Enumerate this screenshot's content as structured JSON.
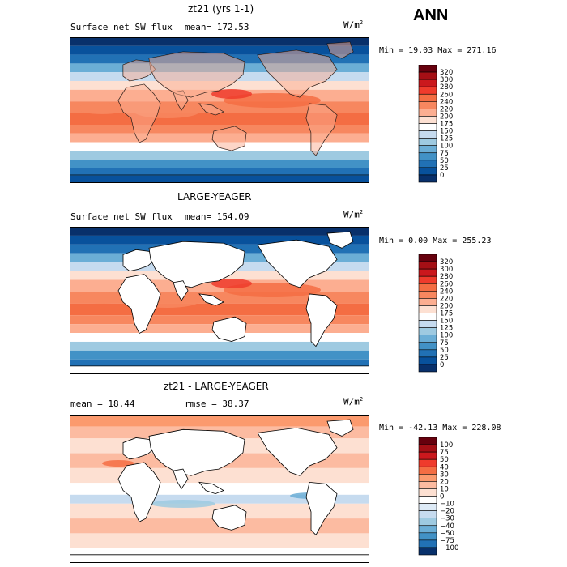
{
  "season": "ANN",
  "panels": [
    {
      "title": "zt21 (yrs 1-1)",
      "field_label": "Surface net SW flux",
      "stat_text": "mean= 172.53",
      "stat2_text": "",
      "units": "W/m",
      "units_exp": "2",
      "minmax": "Min =  19.03 Max = 271.16",
      "mask_land": false,
      "colorbar": {
        "levels": [
          "320",
          "300",
          "280",
          "260",
          "240",
          "220",
          "200",
          "175",
          "150",
          "125",
          "100",
          "75",
          "50",
          "25",
          "0"
        ],
        "colors": [
          "#67000d",
          "#a50f15",
          "#cb181d",
          "#ef3b2c",
          "#f46d43",
          "#f7875f",
          "#fcae91",
          "#fde0d2",
          "#ffffff",
          "#c6dbef",
          "#9ecae1",
          "#6baed6",
          "#4292c6",
          "#2171b5",
          "#08519c",
          "#08306b"
        ]
      }
    },
    {
      "title": "LARGE-YEAGER",
      "field_label": "Surface net SW flux",
      "stat_text": "mean= 154.09",
      "stat2_text": "",
      "units": "W/m",
      "units_exp": "2",
      "minmax": "Min =   0.00 Max = 255.23",
      "mask_land": true,
      "colorbar": {
        "levels": [
          "320",
          "300",
          "280",
          "260",
          "240",
          "220",
          "200",
          "175",
          "150",
          "125",
          "100",
          "75",
          "50",
          "25",
          "0"
        ],
        "colors": [
          "#67000d",
          "#a50f15",
          "#cb181d",
          "#ef3b2c",
          "#f46d43",
          "#f7875f",
          "#fcae91",
          "#fde0d2",
          "#ffffff",
          "#c6dbef",
          "#9ecae1",
          "#6baed6",
          "#4292c6",
          "#2171b5",
          "#08519c",
          "#08306b"
        ]
      }
    },
    {
      "title": "zt21 - LARGE-YEAGER",
      "field_label": "mean =  18.44",
      "stat_text": "rmse =  38.37",
      "stat2_text": "",
      "units": "W/m",
      "units_exp": "2",
      "minmax": "Min = -42.13 Max = 228.08",
      "mask_land": true,
      "colorbar": {
        "levels": [
          "100",
          "75",
          "50",
          "40",
          "30",
          "20",
          "10",
          "0",
          "−10",
          "−20",
          "−30",
          "−40",
          "−50",
          "−75",
          "−100"
        ],
        "colors": [
          "#67000d",
          "#a50f15",
          "#cb181d",
          "#ef3b2c",
          "#f46d43",
          "#fb9a6e",
          "#fcbba1",
          "#fde0d2",
          "#ffffff",
          "#deebf7",
          "#c6dbef",
          "#9ecae1",
          "#6baed6",
          "#4292c6",
          "#2171b5",
          "#08306b"
        ]
      }
    }
  ]
}
